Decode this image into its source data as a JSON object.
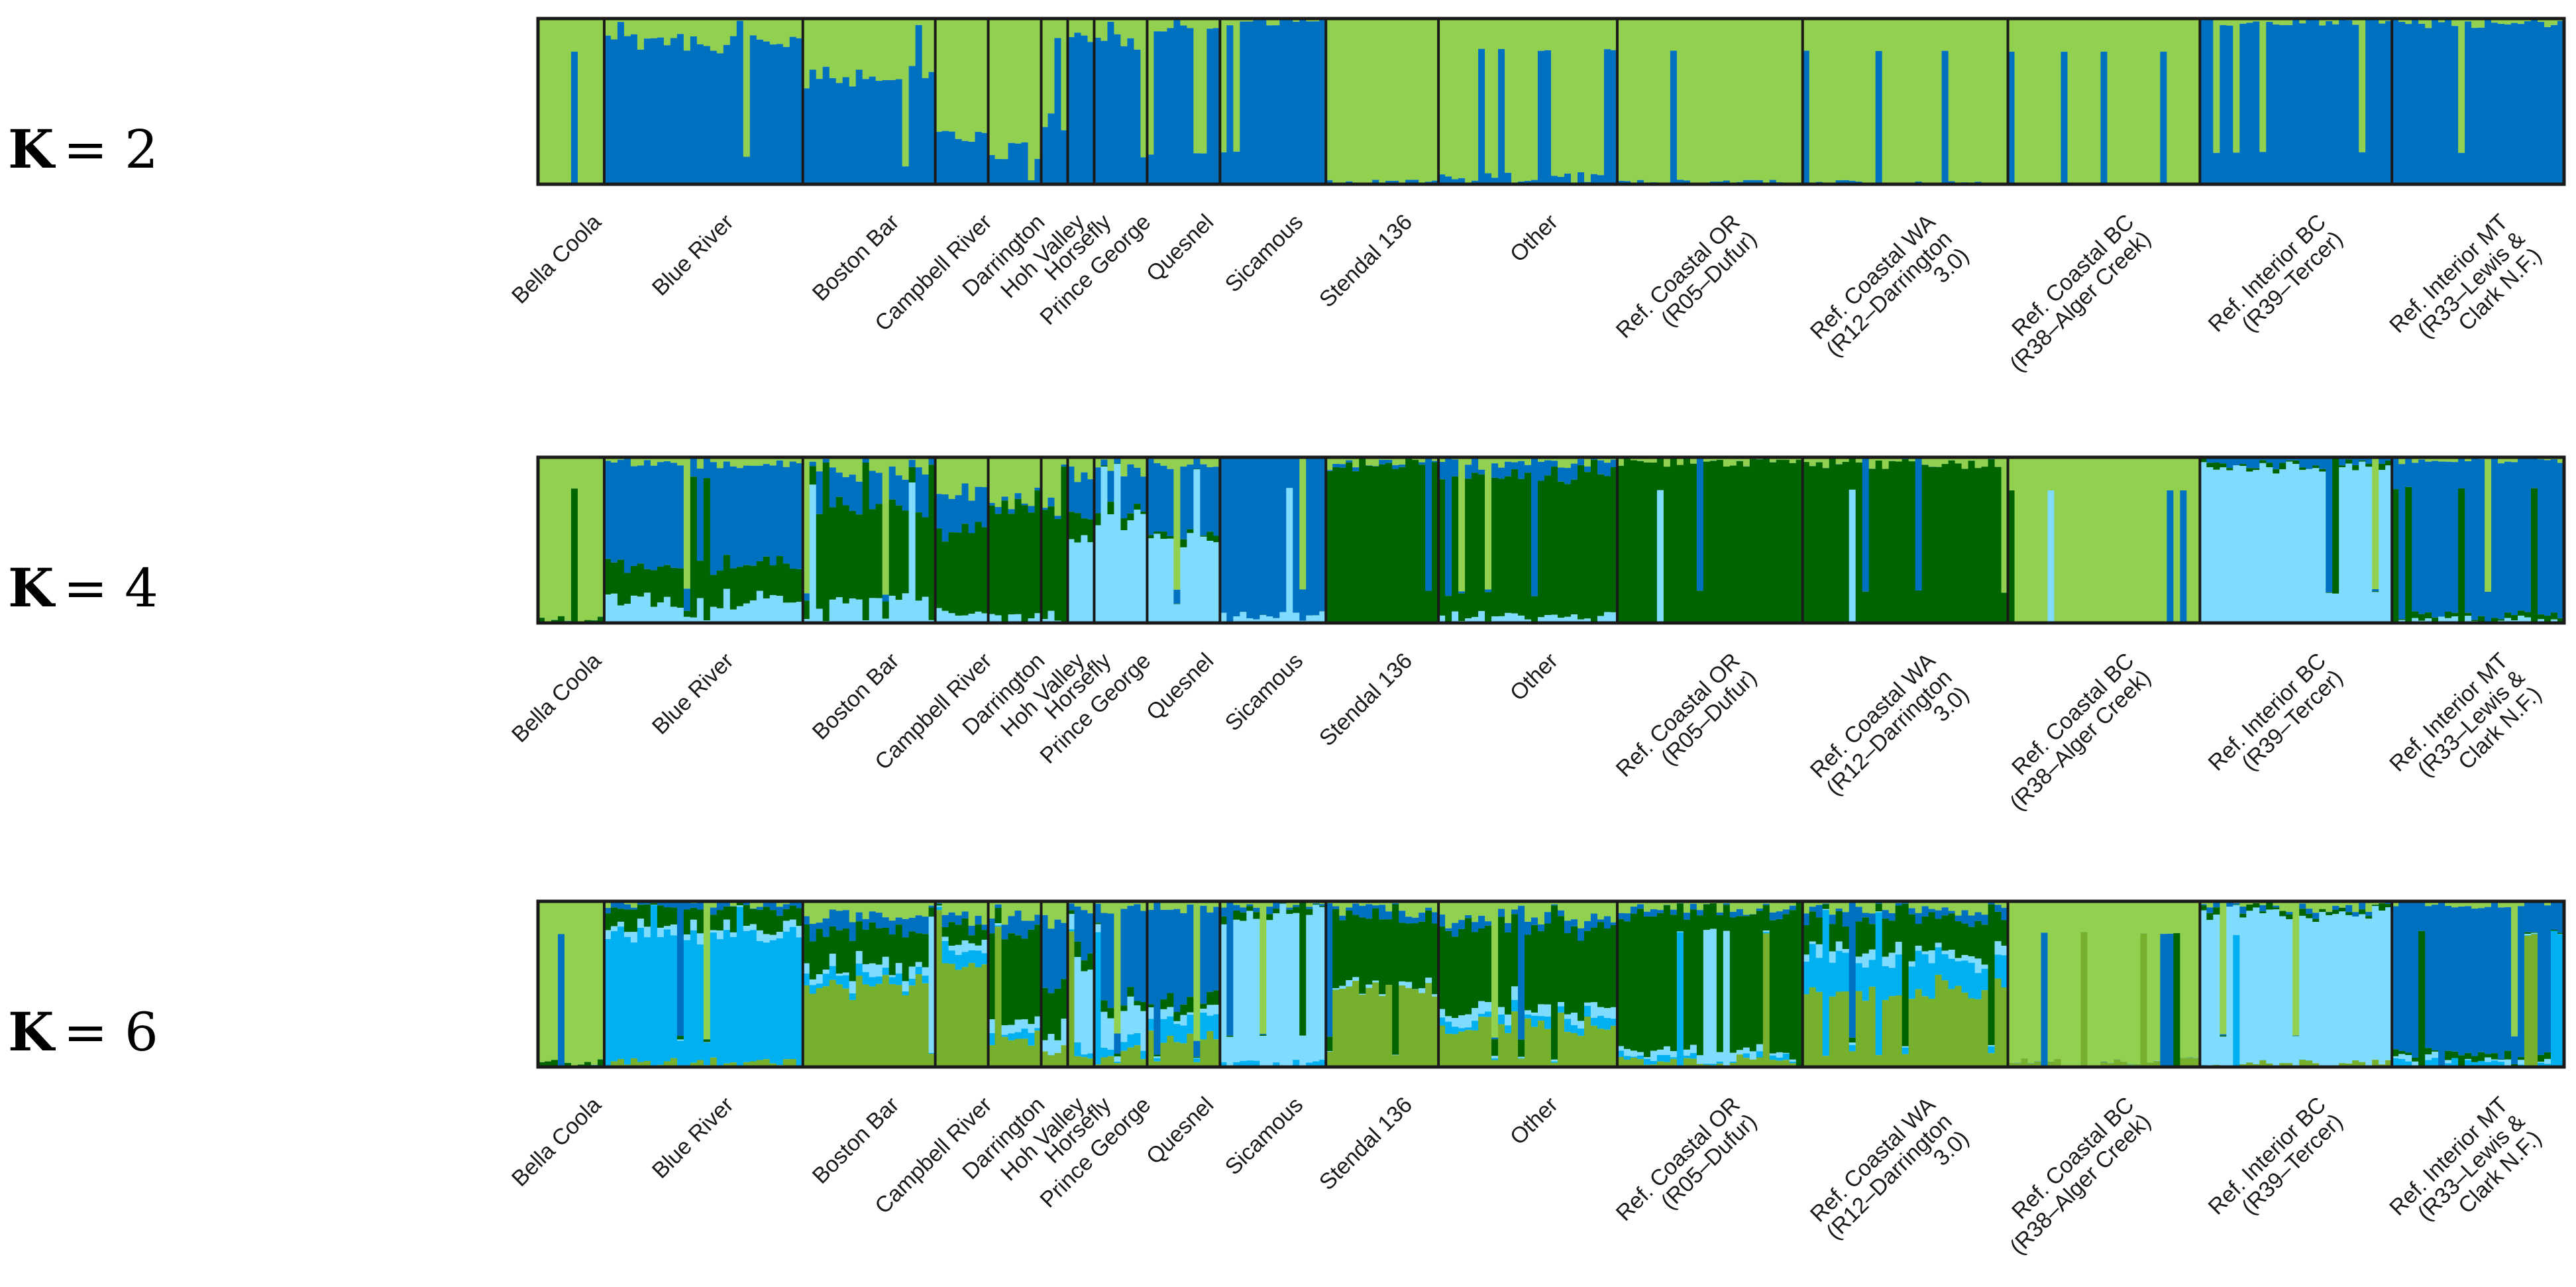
{
  "chart_data": {
    "type": "bar",
    "description_type": "stacked ancestry (STRUCTURE) plot",
    "colors": {
      "light_green": "#92d050",
      "blue": "#0070c0",
      "dark_green": "#006400",
      "light_blue": "#7fdcff",
      "cyan": "#00b0f0",
      "olive_green": "#76b02d",
      "frame": "#1a1a1a"
    },
    "populations": [
      {
        "label": "Bella Coola",
        "n": 10
      },
      {
        "label": "Blue River",
        "n": 30
      },
      {
        "label": "Boston Bar",
        "n": 20
      },
      {
        "label": "Campbell River",
        "n": 8
      },
      {
        "label": "Darrington",
        "n": 8
      },
      {
        "label": "Hoh Valley",
        "n": 4
      },
      {
        "label": "Horsefly",
        "n": 4
      },
      {
        "label": "Prince George",
        "n": 8
      },
      {
        "label": "Quesnel",
        "n": 11
      },
      {
        "label": "Sicamous",
        "n": 16
      },
      {
        "label": "Stendal 136",
        "n": 17
      },
      {
        "label": "Other",
        "n": 27
      },
      {
        "label": "Ref. Coastal OR (R05–Dufur)",
        "n": 28
      },
      {
        "label": "Ref. Coastal WA (R12–Darrington 3.0)",
        "n": 31
      },
      {
        "label": "Ref. Coastal BC (R38–Alger Creek)",
        "n": 29
      },
      {
        "label": "Ref. Interior BC (R39–Tercer)",
        "n": 29
      },
      {
        "label": "Ref. Interior MT (R33–Lewis & Clark N.F.)",
        "n": 26
      }
    ],
    "panels": [
      {
        "k_prefix": "K",
        "k_value": "= 2",
        "clusters": [
          "light_green",
          "blue"
        ],
        "base_proportions": [
          [
            1.0,
            0.0
          ],
          [
            0.15,
            0.85
          ],
          [
            0.35,
            0.65
          ],
          [
            0.7,
            0.3
          ],
          [
            0.8,
            0.2
          ],
          [
            0.65,
            0.35
          ],
          [
            0.1,
            0.9
          ],
          [
            0.15,
            0.85
          ],
          [
            0.05,
            0.95
          ],
          [
            0.02,
            0.98
          ],
          [
            0.99,
            0.01
          ],
          [
            0.96,
            0.04
          ],
          [
            0.99,
            0.01
          ],
          [
            0.99,
            0.01
          ],
          [
            1.0,
            0.0
          ],
          [
            0.02,
            0.98
          ],
          [
            0.03,
            0.97
          ]
        ]
      },
      {
        "k_prefix": "K",
        "k_value": "= 4",
        "clusters": [
          "light_green",
          "blue",
          "dark_green",
          "light_blue"
        ],
        "base_proportions": [
          [
            0.98,
            0.0,
            0.02,
            0.0
          ],
          [
            0.04,
            0.62,
            0.2,
            0.14
          ],
          [
            0.1,
            0.22,
            0.56,
            0.12
          ],
          [
            0.22,
            0.24,
            0.46,
            0.08
          ],
          [
            0.25,
            0.02,
            0.7,
            0.03
          ],
          [
            0.3,
            0.05,
            0.6,
            0.05
          ],
          [
            0.1,
            0.25,
            0.15,
            0.5
          ],
          [
            0.08,
            0.22,
            0.05,
            0.65
          ],
          [
            0.04,
            0.4,
            0.03,
            0.53
          ],
          [
            0.0,
            0.96,
            0.0,
            0.04
          ],
          [
            0.05,
            0.01,
            0.94,
            0.0
          ],
          [
            0.04,
            0.07,
            0.85,
            0.04
          ],
          [
            0.03,
            0.0,
            0.97,
            0.0
          ],
          [
            0.04,
            0.0,
            0.96,
            0.0
          ],
          [
            1.0,
            0.0,
            0.0,
            0.0
          ],
          [
            0.0,
            0.04,
            0.02,
            0.94
          ],
          [
            0.02,
            0.94,
            0.02,
            0.02
          ]
        ]
      },
      {
        "k_prefix": "K",
        "k_value": "= 6",
        "clusters": [
          "light_green",
          "blue",
          "dark_green",
          "light_blue",
          "cyan",
          "olive_green"
        ],
        "base_proportions": [
          [
            0.98,
            0.0,
            0.02,
            0.0,
            0.0,
            0.0
          ],
          [
            0.02,
            0.03,
            0.12,
            0.04,
            0.76,
            0.03
          ],
          [
            0.1,
            0.08,
            0.22,
            0.05,
            0.05,
            0.5
          ],
          [
            0.1,
            0.05,
            0.1,
            0.05,
            0.1,
            0.6
          ],
          [
            0.1,
            0.1,
            0.55,
            0.05,
            0.05,
            0.15
          ],
          [
            0.1,
            0.4,
            0.3,
            0.1,
            0.0,
            0.1
          ],
          [
            0.05,
            0.25,
            0.1,
            0.5,
            0.05,
            0.05
          ],
          [
            0.05,
            0.55,
            0.05,
            0.2,
            0.05,
            0.1
          ],
          [
            0.05,
            0.55,
            0.05,
            0.05,
            0.1,
            0.2
          ],
          [
            0.02,
            0.03,
            0.03,
            0.9,
            0.02,
            0.0
          ],
          [
            0.05,
            0.05,
            0.4,
            0.02,
            0.0,
            0.48
          ],
          [
            0.1,
            0.05,
            0.5,
            0.05,
            0.05,
            0.25
          ],
          [
            0.05,
            0.03,
            0.82,
            0.03,
            0.02,
            0.05
          ],
          [
            0.05,
            0.05,
            0.2,
            0.05,
            0.2,
            0.45
          ],
          [
            0.97,
            0.0,
            0.0,
            0.0,
            0.0,
            0.03
          ],
          [
            0.04,
            0.02,
            0.02,
            0.9,
            0.0,
            0.02
          ],
          [
            0.02,
            0.9,
            0.03,
            0.02,
            0.03,
            0.0
          ]
        ]
      }
    ]
  }
}
